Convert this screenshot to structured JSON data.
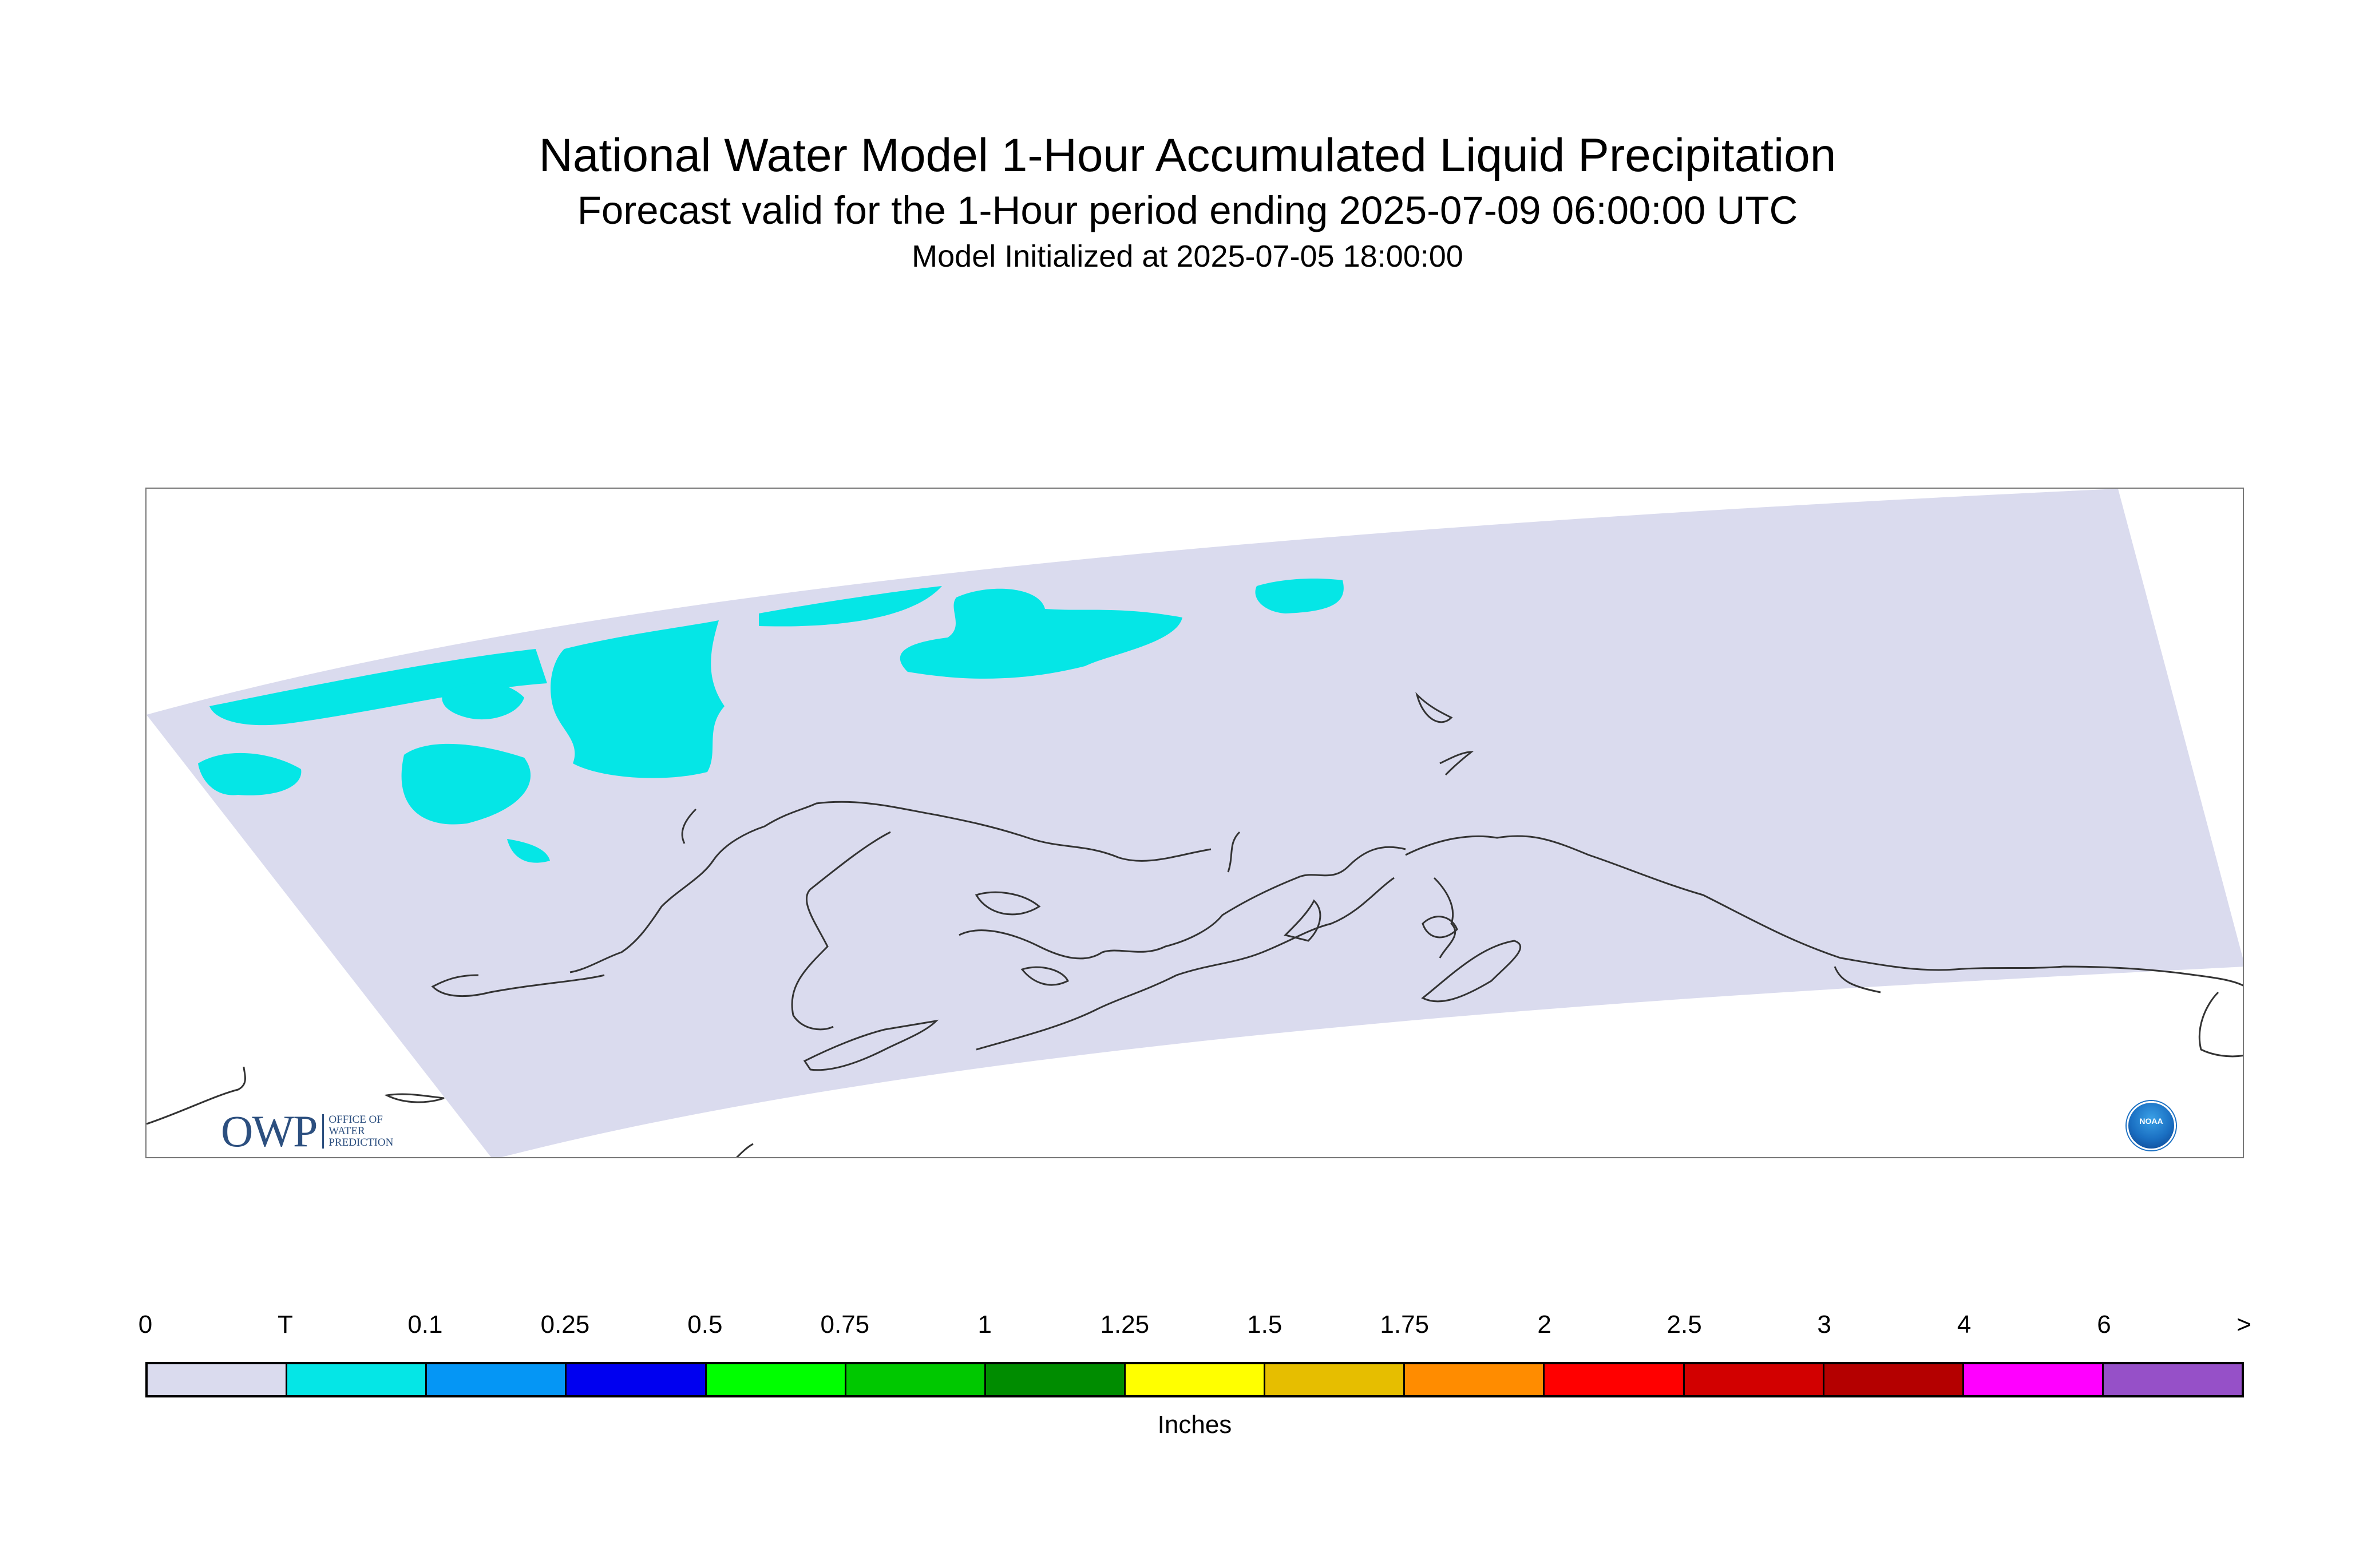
{
  "header": {
    "title": "National Water Model 1-Hour Accumulated Liquid Precipitation",
    "subtitle": "Forecast valid for the 1-Hour period ending 2025-07-09 06:00:00 UTC",
    "init": "Model Initialized at 2025-07-05 18:00:00"
  },
  "map": {
    "domain_fill_color": "#dadbee",
    "precip_color": "#05e6e6",
    "coast_color": "#333333",
    "owp_logo": {
      "mark": "OWP",
      "line1": "OFFICE OF",
      "line2": "WATER",
      "line3": "PREDICTION"
    },
    "noaa_logo": "NOAA"
  },
  "legend": {
    "units": "Inches",
    "ticks": [
      "0",
      "T",
      "0.1",
      "0.25",
      "0.5",
      "0.75",
      "1",
      "1.25",
      "1.5",
      "1.75",
      "2",
      "2.5",
      "3",
      "4",
      "6",
      ">"
    ],
    "colors": [
      "#dadbee",
      "#05e6e6",
      "#0596f5",
      "#0000f0",
      "#00ff00",
      "#00c800",
      "#008c00",
      "#ffff00",
      "#e6be00",
      "#ff8c00",
      "#ff0000",
      "#d20000",
      "#b40000",
      "#ff00ff",
      "#9650c8"
    ]
  }
}
